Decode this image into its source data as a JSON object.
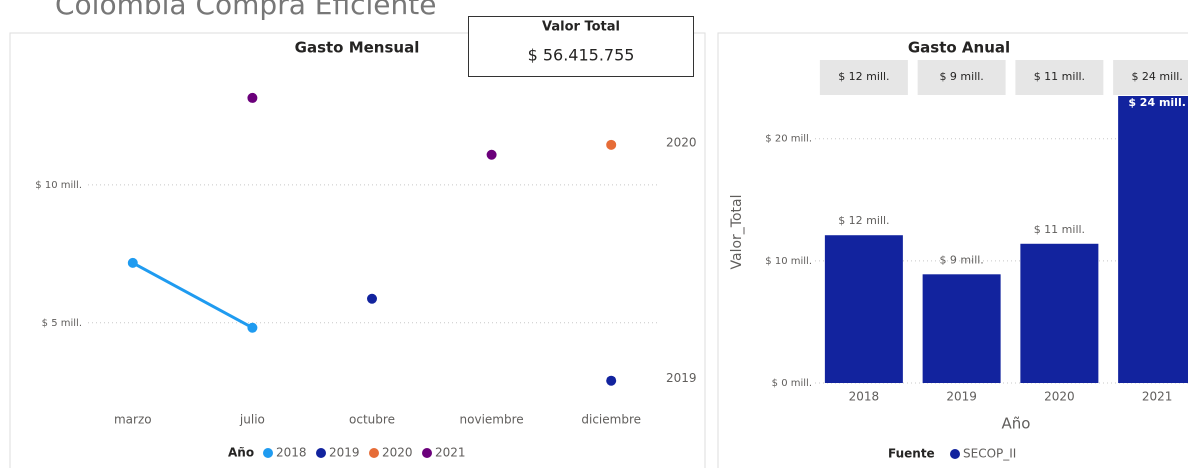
{
  "page_title": "Colombia Compra Eficiente",
  "card": {
    "label": "Valor Total",
    "value": "$ 56.415.755"
  },
  "chart_data": [
    {
      "type": "line",
      "title": "Gasto Mensual",
      "categories": [
        "marzo",
        "julio",
        "octubre",
        "noviembre",
        "diciembre"
      ],
      "series": [
        {
          "name": "2018",
          "color": "#1f9bf0",
          "values": [
            7.17,
            4.82,
            null,
            null,
            null
          ]
        },
        {
          "name": "2019",
          "color": "#12239e",
          "values": [
            null,
            null,
            5.87,
            null,
            2.9
          ]
        },
        {
          "name": "2020",
          "color": "#e66c37",
          "values": [
            null,
            null,
            null,
            null,
            11.45
          ]
        },
        {
          "name": "2021",
          "color": "#6b007b",
          "values": [
            null,
            13.15,
            null,
            11.09,
            null
          ]
        }
      ],
      "ylim": [
        2.2,
        13.8
      ],
      "yticks": [
        {
          "value": 5,
          "label": "$ 5 mill."
        },
        {
          "value": 10,
          "label": "$ 10 mill."
        }
      ],
      "grid": true,
      "end_labels": true,
      "legend_title": "Año",
      "legend": "bottom"
    },
    {
      "type": "bar",
      "title": "Gasto Anual",
      "categories": [
        "2018",
        "2019",
        "2020",
        "2021"
      ],
      "values": [
        12.1,
        8.9,
        11.4,
        24.0
      ],
      "value_labels": [
        "$ 12 mill.",
        "$ 9 mill.",
        "$ 11 mill.",
        "$ 24 mill."
      ],
      "color": "#12239e",
      "ylim": [
        0,
        23.5
      ],
      "yticks": [
        {
          "value": 0,
          "label": "$ 0 mill."
        },
        {
          "value": 10,
          "label": "$ 10 mill."
        },
        {
          "value": 20,
          "label": "$ 20 mill."
        }
      ],
      "grid": true,
      "y_label": "Valor_Total",
      "x_label": "Año",
      "legend_title": "Fuente",
      "legend_entries": [
        "SECOP_II"
      ],
      "legend": "bottom"
    }
  ]
}
